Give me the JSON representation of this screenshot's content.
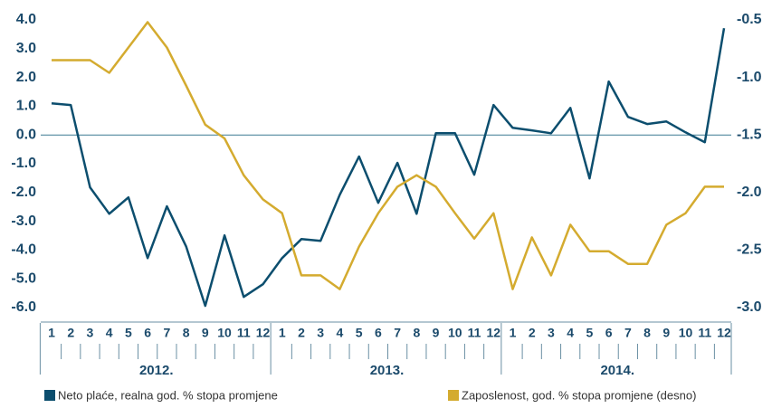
{
  "chart_data": {
    "type": "line",
    "categories": [
      "1",
      "2",
      "3",
      "4",
      "5",
      "6",
      "7",
      "8",
      "9",
      "10",
      "11",
      "12",
      "1",
      "2",
      "3",
      "4",
      "5",
      "6",
      "7",
      "8",
      "9",
      "10",
      "11",
      "12",
      "1",
      "2",
      "3",
      "4",
      "5",
      "6",
      "7",
      "8",
      "9",
      "10",
      "11",
      "12"
    ],
    "years": [
      "2012.",
      "2013.",
      "2014."
    ],
    "ylim": [
      -6,
      4
    ],
    "yticks": [
      {
        "value": 4,
        "label": "4.0"
      },
      {
        "value": 3,
        "label": "3.0"
      },
      {
        "value": 2,
        "label": "2.0"
      },
      {
        "value": 1,
        "label": "1.0"
      },
      {
        "value": 0,
        "label": "0.0"
      },
      {
        "value": -1,
        "label": "-1.0"
      },
      {
        "value": -2,
        "label": "-2.0"
      },
      {
        "value": -3,
        "label": "-3.0"
      },
      {
        "value": -4,
        "label": "-4.0"
      },
      {
        "value": -5,
        "label": "-5.0"
      },
      {
        "value": -6,
        "label": "-6.0"
      }
    ],
    "y2lim": [
      -3,
      -0.5
    ],
    "y2ticks": [
      {
        "value": -0.5,
        "label": "-0.5"
      },
      {
        "value": -1,
        "label": "-1.0"
      },
      {
        "value": -1.5,
        "label": "-1.5"
      },
      {
        "value": -2,
        "label": "-2.0"
      },
      {
        "value": -2.5,
        "label": "-2.5"
      },
      {
        "value": -3,
        "label": "-3.0"
      }
    ],
    "series": [
      {
        "name": "Neto plaće, realna god. % stopa promjene",
        "color": "#0c4e6e",
        "values": [
          1.1,
          1.04,
          -1.82,
          -2.74,
          -2.17,
          -4.28,
          -2.48,
          -3.87,
          -5.94,
          -3.49,
          -5.63,
          -5.19,
          -4.28,
          -3.62,
          -3.68,
          -2.08,
          -0.75,
          -2.36,
          -0.97,
          -2.74,
          0.06,
          0.06,
          -1.38,
          1.04,
          0.25,
          0.16,
          0.06,
          0.94,
          -1.51,
          1.86,
          0.63,
          0.38,
          0.47,
          0.09,
          -0.25,
          3.71
        ]
      },
      {
        "name": "Zaposlenost, god. % stopa promjene (desno)",
        "color": "#d4ab2f",
        "axis": "y2",
        "values": [
          -0.85,
          -0.85,
          -0.85,
          -0.96,
          -0.74,
          -0.52,
          -0.74,
          -1.07,
          -1.41,
          -1.53,
          -1.85,
          -2.06,
          -2.18,
          -2.72,
          -2.72,
          -2.84,
          -2.47,
          -2.18,
          -1.95,
          -1.85,
          -1.95,
          -2.18,
          -2.4,
          -2.18,
          -2.84,
          -2.39,
          -2.72,
          -2.28,
          -2.51,
          -2.51,
          -2.62,
          -2.62,
          -2.28,
          -2.18,
          -1.95,
          -1.95
        ]
      }
    ]
  }
}
